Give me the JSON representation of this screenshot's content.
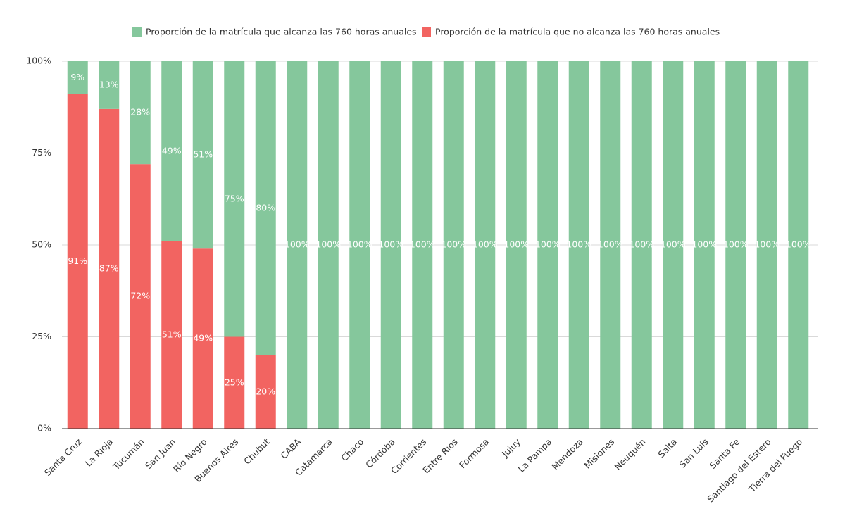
{
  "chart_data": {
    "type": "stacked_bar",
    "categories": [
      "Santa Cruz",
      "La Rioja",
      "Tucumán",
      "San Juan",
      "Río Negro",
      "Buenos Aires",
      "Chubut",
      "CABA",
      "Catamarca",
      "Chaco",
      "Córdoba",
      "Corrientes",
      "Entre Ríos",
      "Formosa",
      "Jujuy",
      "La Pampa",
      "Mendoza",
      "Misiones",
      "Neuquén",
      "Salta",
      "San Luis",
      "Santa Fe",
      "Santiago del Estero",
      "Tierra del Fuego"
    ],
    "series": [
      {
        "name": "Proporción de la matrícula que no alcanza las 760 horas anuales",
        "color": "#f26461",
        "values": [
          91,
          87,
          72,
          51,
          49,
          25,
          20,
          0,
          0,
          0,
          0,
          0,
          0,
          0,
          0,
          0,
          0,
          0,
          0,
          0,
          0,
          0,
          0,
          0
        ],
        "value_labels": [
          "91%",
          "87%",
          "72%",
          "51%",
          "49%",
          "25%",
          "20%",
          null,
          null,
          null,
          null,
          null,
          null,
          null,
          null,
          null,
          null,
          null,
          null,
          null,
          null,
          null,
          null,
          null
        ]
      },
      {
        "name": "Proporción de la matrícula que alcanza las 760 horas anuales",
        "color": "#85c79c",
        "values": [
          9,
          13,
          28,
          49,
          51,
          75,
          80,
          100,
          100,
          100,
          100,
          100,
          100,
          100,
          100,
          100,
          100,
          100,
          100,
          100,
          100,
          100,
          100,
          100
        ],
        "value_labels": [
          "9%",
          "13%",
          "28%",
          "49%",
          "51%",
          "75%",
          "80%",
          "100%",
          "100%",
          "100%",
          "100%",
          "100%",
          "100%",
          "100%",
          "100%",
          "100%",
          "100%",
          "100%",
          "100%",
          "100%",
          "100%",
          "100%",
          "100%",
          "100%"
        ]
      }
    ],
    "ylim": [
      0,
      100
    ],
    "yticks": [
      {
        "value": 0,
        "label": "0%"
      },
      {
        "value": 25,
        "label": "25%"
      },
      {
        "value": 50,
        "label": "50%"
      },
      {
        "value": 75,
        "label": "75%"
      },
      {
        "value": 100,
        "label": "100%"
      }
    ],
    "grid": true
  }
}
